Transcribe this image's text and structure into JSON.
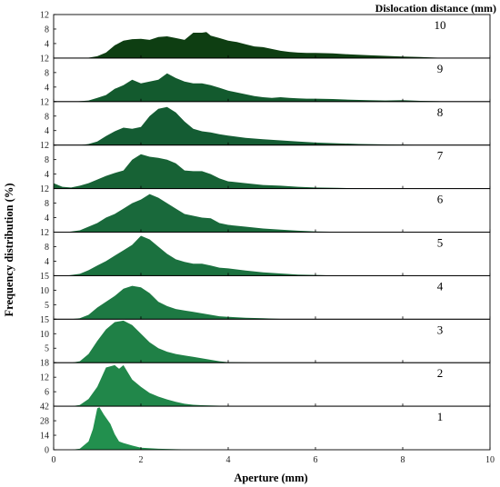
{
  "chart_data": {
    "type": "area",
    "legend_title": "Dislocation distance (mm)",
    "xlabel": "Aperture (mm)",
    "ylabel": "Frequency distribution (%)",
    "xlim": [
      0,
      10
    ],
    "x_ticks": [
      "0",
      "2",
      "4",
      "6",
      "8",
      "10"
    ],
    "grid": false,
    "panels": [
      {
        "label": "10",
        "color": "#0e3e12",
        "ylim": [
          0,
          12
        ],
        "y_ticks": [
          "4",
          "8",
          "12"
        ],
        "points": [
          [
            0,
            0
          ],
          [
            0.5,
            0
          ],
          [
            0.8,
            0.1
          ],
          [
            1.0,
            0.5
          ],
          [
            1.2,
            1.5
          ],
          [
            1.4,
            3.5
          ],
          [
            1.6,
            4.8
          ],
          [
            1.8,
            5.2
          ],
          [
            2.0,
            5.3
          ],
          [
            2.2,
            5.0
          ],
          [
            2.4,
            5.8
          ],
          [
            2.6,
            6.0
          ],
          [
            2.8,
            5.5
          ],
          [
            3.0,
            5.0
          ],
          [
            3.2,
            7.0
          ],
          [
            3.4,
            7.0
          ],
          [
            3.5,
            7.2
          ],
          [
            3.6,
            6.2
          ],
          [
            3.8,
            5.5
          ],
          [
            4.0,
            4.8
          ],
          [
            4.2,
            4.4
          ],
          [
            4.4,
            3.8
          ],
          [
            4.6,
            3.2
          ],
          [
            4.8,
            3.0
          ],
          [
            5.0,
            2.5
          ],
          [
            5.2,
            2.0
          ],
          [
            5.4,
            1.7
          ],
          [
            5.6,
            1.5
          ],
          [
            5.8,
            1.4
          ],
          [
            6.0,
            1.4
          ],
          [
            6.4,
            1.3
          ],
          [
            6.8,
            1.0
          ],
          [
            7.2,
            0.8
          ],
          [
            7.6,
            0.6
          ],
          [
            8.0,
            0.4
          ],
          [
            8.4,
            0.3
          ],
          [
            8.8,
            0.1
          ],
          [
            9.0,
            0
          ],
          [
            10,
            0
          ]
        ]
      },
      {
        "label": "9",
        "color": "#135a2e",
        "ylim": [
          0,
          12
        ],
        "y_ticks": [
          "4",
          "8",
          "12"
        ],
        "points": [
          [
            0,
            0
          ],
          [
            0.5,
            0
          ],
          [
            0.8,
            0.3
          ],
          [
            1.0,
            1.0
          ],
          [
            1.2,
            1.8
          ],
          [
            1.4,
            3.5
          ],
          [
            1.6,
            4.5
          ],
          [
            1.8,
            6.0
          ],
          [
            2.0,
            5.0
          ],
          [
            2.2,
            5.5
          ],
          [
            2.4,
            6.0
          ],
          [
            2.6,
            7.8
          ],
          [
            2.8,
            6.5
          ],
          [
            3.0,
            5.5
          ],
          [
            3.2,
            5.0
          ],
          [
            3.4,
            5.0
          ],
          [
            3.6,
            4.5
          ],
          [
            3.8,
            3.8
          ],
          [
            4.0,
            3.0
          ],
          [
            4.2,
            2.5
          ],
          [
            4.4,
            2.0
          ],
          [
            4.6,
            1.5
          ],
          [
            4.8,
            1.2
          ],
          [
            5.0,
            1.0
          ],
          [
            5.2,
            1.2
          ],
          [
            5.4,
            1.0
          ],
          [
            5.6,
            0.9
          ],
          [
            5.8,
            0.8
          ],
          [
            6.0,
            0.8
          ],
          [
            6.4,
            0.7
          ],
          [
            6.8,
            0.5
          ],
          [
            7.2,
            0.4
          ],
          [
            7.6,
            0.3
          ],
          [
            8.0,
            0.4
          ],
          [
            8.4,
            0.2
          ],
          [
            8.8,
            0.1
          ],
          [
            9.0,
            0
          ],
          [
            10,
            0
          ]
        ]
      },
      {
        "label": "8",
        "color": "#145c33",
        "ylim": [
          0,
          12
        ],
        "y_ticks": [
          "4",
          "8",
          "12"
        ],
        "points": [
          [
            0,
            0
          ],
          [
            0.6,
            0
          ],
          [
            0.8,
            0.3
          ],
          [
            1.0,
            1.0
          ],
          [
            1.2,
            2.5
          ],
          [
            1.4,
            3.8
          ],
          [
            1.6,
            4.8
          ],
          [
            1.8,
            4.5
          ],
          [
            2.0,
            5.0
          ],
          [
            2.2,
            8.0
          ],
          [
            2.4,
            10.0
          ],
          [
            2.6,
            10.5
          ],
          [
            2.8,
            9.0
          ],
          [
            3.0,
            6.5
          ],
          [
            3.2,
            4.5
          ],
          [
            3.4,
            3.8
          ],
          [
            3.6,
            3.5
          ],
          [
            3.8,
            3.0
          ],
          [
            4.0,
            2.6
          ],
          [
            4.4,
            2.0
          ],
          [
            4.8,
            1.6
          ],
          [
            5.2,
            1.3
          ],
          [
            5.6,
            1.0
          ],
          [
            6.0,
            0.7
          ],
          [
            6.5,
            0.5
          ],
          [
            7.0,
            0.3
          ],
          [
            7.5,
            0.2
          ],
          [
            8.0,
            0.1
          ],
          [
            8.5,
            0
          ],
          [
            10,
            0
          ]
        ]
      },
      {
        "label": "7",
        "color": "#176235",
        "ylim": [
          0,
          12
        ],
        "y_ticks": [
          "4",
          "8",
          "12"
        ],
        "points": [
          [
            0,
            1.5
          ],
          [
            0.2,
            0.5
          ],
          [
            0.4,
            0.3
          ],
          [
            0.6,
            0.8
          ],
          [
            0.8,
            1.5
          ],
          [
            1.0,
            2.5
          ],
          [
            1.2,
            3.5
          ],
          [
            1.4,
            4.3
          ],
          [
            1.6,
            5.0
          ],
          [
            1.8,
            8.0
          ],
          [
            2.0,
            9.5
          ],
          [
            2.2,
            8.8
          ],
          [
            2.4,
            8.5
          ],
          [
            2.6,
            8.0
          ],
          [
            2.8,
            7.0
          ],
          [
            3.0,
            5.0
          ],
          [
            3.2,
            4.8
          ],
          [
            3.4,
            4.8
          ],
          [
            3.6,
            4.0
          ],
          [
            3.8,
            2.8
          ],
          [
            4.0,
            2.0
          ],
          [
            4.4,
            1.5
          ],
          [
            4.8,
            1.0
          ],
          [
            5.2,
            0.8
          ],
          [
            5.6,
            0.5
          ],
          [
            6.0,
            0.3
          ],
          [
            6.5,
            0.2
          ],
          [
            7.0,
            0.1
          ],
          [
            7.5,
            0
          ],
          [
            10,
            0
          ]
        ]
      },
      {
        "label": "6",
        "color": "#19693b",
        "ylim": [
          0,
          12
        ],
        "y_ticks": [
          "4",
          "8",
          "12"
        ],
        "points": [
          [
            0,
            0
          ],
          [
            0.3,
            0
          ],
          [
            0.6,
            0.5
          ],
          [
            0.8,
            1.5
          ],
          [
            1.0,
            2.5
          ],
          [
            1.2,
            4.0
          ],
          [
            1.4,
            5.0
          ],
          [
            1.6,
            6.5
          ],
          [
            1.8,
            8.0
          ],
          [
            2.0,
            9.0
          ],
          [
            2.2,
            10.5
          ],
          [
            2.4,
            9.5
          ],
          [
            2.6,
            8.0
          ],
          [
            2.8,
            6.5
          ],
          [
            3.0,
            5.0
          ],
          [
            3.2,
            4.5
          ],
          [
            3.4,
            4.0
          ],
          [
            3.6,
            3.8
          ],
          [
            3.8,
            2.5
          ],
          [
            4.0,
            2.0
          ],
          [
            4.4,
            1.5
          ],
          [
            4.8,
            1.0
          ],
          [
            5.2,
            0.7
          ],
          [
            5.6,
            0.4
          ],
          [
            6.0,
            0.2
          ],
          [
            6.5,
            0.1
          ],
          [
            7.0,
            0
          ],
          [
            10,
            0
          ]
        ]
      },
      {
        "label": "5",
        "color": "#1b713f",
        "ylim": [
          0,
          12
        ],
        "y_ticks": [
          "4",
          "8",
          "12"
        ],
        "points": [
          [
            0,
            0
          ],
          [
            0.3,
            0
          ],
          [
            0.6,
            0.5
          ],
          [
            0.8,
            1.5
          ],
          [
            1.0,
            2.8
          ],
          [
            1.2,
            4.0
          ],
          [
            1.4,
            5.5
          ],
          [
            1.6,
            7.0
          ],
          [
            1.8,
            8.5
          ],
          [
            2.0,
            11.0
          ],
          [
            2.2,
            10.0
          ],
          [
            2.4,
            8.0
          ],
          [
            2.6,
            6.0
          ],
          [
            2.8,
            4.5
          ],
          [
            3.0,
            3.8
          ],
          [
            3.2,
            3.3
          ],
          [
            3.4,
            3.3
          ],
          [
            3.6,
            2.8
          ],
          [
            3.8,
            2.2
          ],
          [
            4.0,
            2.0
          ],
          [
            4.4,
            1.4
          ],
          [
            4.8,
            0.9
          ],
          [
            5.2,
            0.6
          ],
          [
            5.6,
            0.3
          ],
          [
            6.0,
            0.2
          ],
          [
            6.5,
            0
          ],
          [
            10,
            0
          ]
        ]
      },
      {
        "label": "4",
        "color": "#1d7943",
        "ylim": [
          0,
          15
        ],
        "y_ticks": [
          "5",
          "10",
          "15"
        ],
        "points": [
          [
            0,
            0
          ],
          [
            0.4,
            0
          ],
          [
            0.6,
            0.3
          ],
          [
            0.8,
            1.5
          ],
          [
            1.0,
            4.0
          ],
          [
            1.2,
            6.0
          ],
          [
            1.4,
            8.0
          ],
          [
            1.6,
            10.5
          ],
          [
            1.8,
            11.5
          ],
          [
            2.0,
            11.0
          ],
          [
            2.2,
            9.0
          ],
          [
            2.4,
            6.0
          ],
          [
            2.6,
            4.5
          ],
          [
            2.8,
            3.5
          ],
          [
            3.0,
            3.0
          ],
          [
            3.2,
            2.5
          ],
          [
            3.4,
            2.0
          ],
          [
            3.6,
            1.5
          ],
          [
            3.8,
            1.0
          ],
          [
            4.0,
            0.8
          ],
          [
            4.4,
            0.5
          ],
          [
            4.8,
            0.3
          ],
          [
            5.2,
            0.1
          ],
          [
            5.5,
            0
          ],
          [
            10,
            0
          ]
        ]
      },
      {
        "label": "3",
        "color": "#1f8046",
        "ylim": [
          0,
          15
        ],
        "y_ticks": [
          "5",
          "10",
          "15"
        ],
        "points": [
          [
            0,
            0
          ],
          [
            0.4,
            0
          ],
          [
            0.6,
            0.5
          ],
          [
            0.8,
            3.0
          ],
          [
            1.0,
            7.5
          ],
          [
            1.2,
            11.5
          ],
          [
            1.4,
            14.0
          ],
          [
            1.6,
            14.5
          ],
          [
            1.8,
            13.0
          ],
          [
            2.0,
            10.0
          ],
          [
            2.2,
            7.0
          ],
          [
            2.4,
            5.0
          ],
          [
            2.6,
            3.8
          ],
          [
            2.8,
            3.0
          ],
          [
            3.0,
            2.5
          ],
          [
            3.2,
            2.0
          ],
          [
            3.4,
            1.5
          ],
          [
            3.6,
            1.0
          ],
          [
            3.8,
            0.5
          ],
          [
            4.0,
            0.2
          ],
          [
            4.4,
            0.1
          ],
          [
            4.8,
            0
          ],
          [
            10,
            0
          ]
        ]
      },
      {
        "label": "2",
        "color": "#21874a",
        "ylim": [
          0,
          18
        ],
        "y_ticks": [
          "6",
          "12",
          "18"
        ],
        "points": [
          [
            0,
            0
          ],
          [
            0.4,
            0
          ],
          [
            0.6,
            0.5
          ],
          [
            0.8,
            3.0
          ],
          [
            1.0,
            8.0
          ],
          [
            1.2,
            16.0
          ],
          [
            1.4,
            17.0
          ],
          [
            1.5,
            15.5
          ],
          [
            1.6,
            17.0
          ],
          [
            1.8,
            11.0
          ],
          [
            2.0,
            8.0
          ],
          [
            2.2,
            5.5
          ],
          [
            2.4,
            4.0
          ],
          [
            2.6,
            2.8
          ],
          [
            2.8,
            1.8
          ],
          [
            3.0,
            1.0
          ],
          [
            3.2,
            0.6
          ],
          [
            3.4,
            0.4
          ],
          [
            3.6,
            0.3
          ],
          [
            4.0,
            0.1
          ],
          [
            4.4,
            0
          ],
          [
            10,
            0
          ]
        ]
      },
      {
        "label": "1",
        "color": "#22904e",
        "ylim": [
          0,
          42
        ],
        "y_ticks": [
          "14",
          "28",
          "42"
        ],
        "points": [
          [
            0,
            0
          ],
          [
            0.4,
            0
          ],
          [
            0.6,
            1.0
          ],
          [
            0.8,
            8.0
          ],
          [
            0.9,
            20.0
          ],
          [
            1.0,
            40.0
          ],
          [
            1.05,
            41.0
          ],
          [
            1.15,
            34.0
          ],
          [
            1.3,
            25.0
          ],
          [
            1.4,
            15.0
          ],
          [
            1.5,
            8.0
          ],
          [
            1.6,
            6.5
          ],
          [
            1.8,
            4.0
          ],
          [
            2.0,
            2.0
          ],
          [
            2.4,
            1.0
          ],
          [
            2.8,
            0.5
          ],
          [
            3.2,
            0.2
          ],
          [
            3.6,
            0
          ],
          [
            10,
            0
          ]
        ]
      }
    ]
  }
}
